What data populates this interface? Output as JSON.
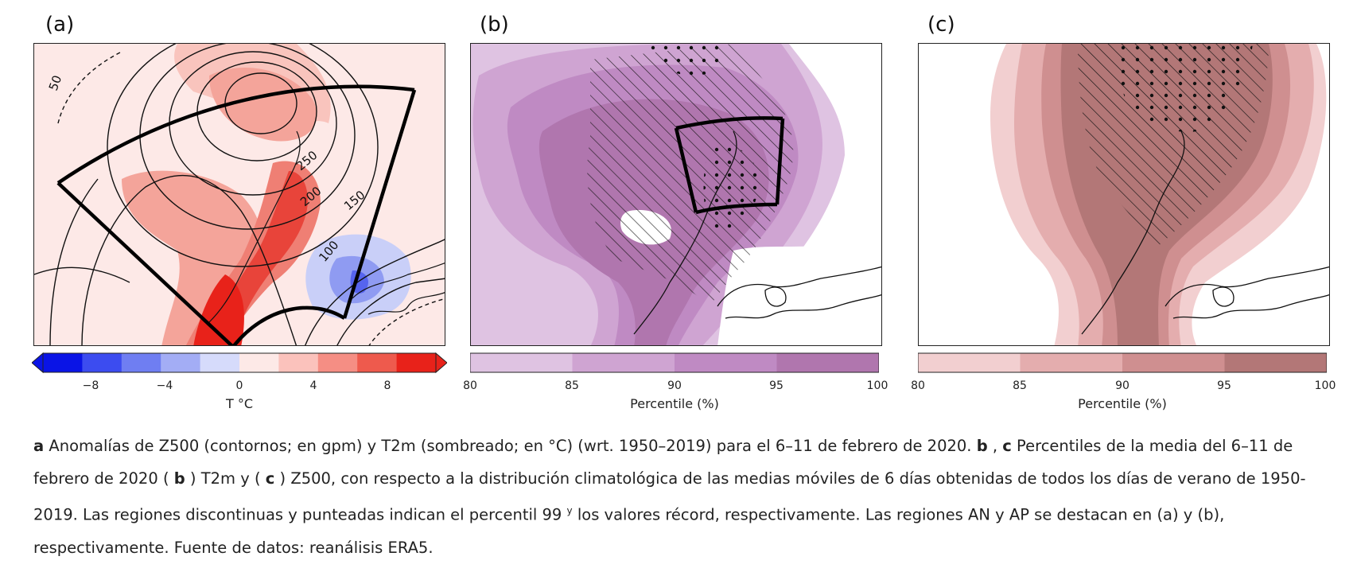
{
  "panels": [
    {
      "letter": "(a)",
      "contour_labels": [
        "50",
        "250",
        "200",
        "150",
        "100"
      ],
      "colorbar": {
        "ticks": [
          "−8",
          "−4",
          "0",
          "4",
          "8"
        ],
        "title": "T °C",
        "colors": [
          "#0a14e6",
          "#3c4cf0",
          "#6f7ef2",
          "#a3adf5",
          "#d6dbfb",
          "#fde9e7",
          "#fbc2bc",
          "#f58e84",
          "#ee5a4d",
          "#e8221a"
        ]
      }
    },
    {
      "letter": "(b)",
      "colorbar": {
        "ticks": [
          "80",
          "85",
          "90",
          "95",
          "100"
        ],
        "title": "Percentile (%)",
        "colors": [
          "#dfc3e2",
          "#cfa4d2",
          "#bf8ac3",
          "#b076ae"
        ]
      }
    },
    {
      "letter": "(c)",
      "colorbar": {
        "ticks": [
          "80",
          "85",
          "90",
          "95",
          "100"
        ],
        "title": "Percentile (%)",
        "colors": [
          "#f2cfd0",
          "#e4adae",
          "#cf8f90",
          "#b37777"
        ]
      }
    }
  ],
  "caption": {
    "a_label": "a",
    "a_text": " Anomalías de Z500 (contornos; en gpm) y T2m (sombreado; en °C) (wrt. 1950–2019) para el 6–11 de febrero de 2020. ",
    "bc_label_b": "b",
    "sep1": " , ",
    "bc_label_c": "c",
    "bc_text_1": " Percentiles de la media del 6–11 de febrero de 2020 ( ",
    "b_ref": "b",
    "bc_text_2": " ) T2m y ( ",
    "c_ref": "c",
    "bc_text_3": " ) Z500, con respecto a la distribución climatológica de las medias móviles de 6 días obtenidas de todos los días de verano de 1950-2019. Las regiones discontinuas y punteadas indican el percentil 99 ",
    "sup": "y",
    "bc_text_4": " los valores récord, respectivamente. Las regiones AN y AP se destacan en (a) y (b), respectivamente. Fuente de datos: reanálisis ERA5."
  }
}
